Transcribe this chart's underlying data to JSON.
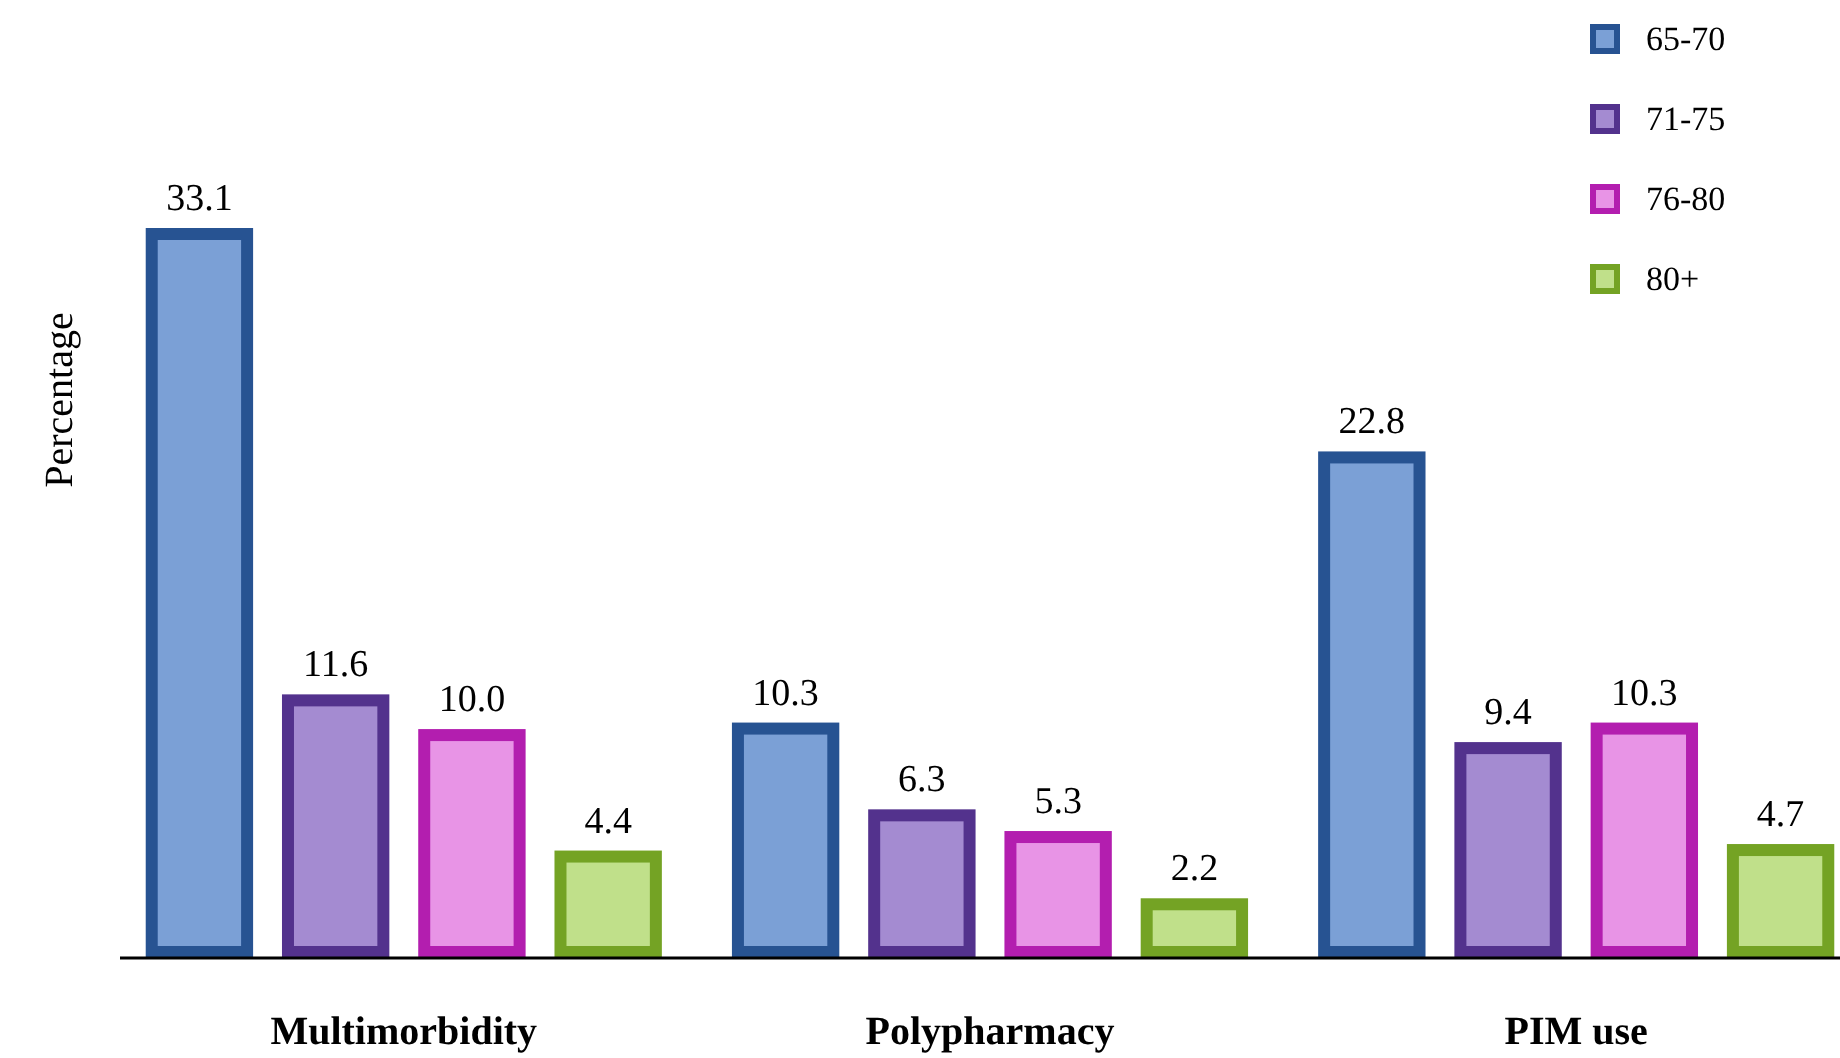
{
  "chart_data": {
    "type": "bar",
    "ylabel": "Percentage",
    "categories": [
      "Multimorbidity",
      "Polypharmacy",
      "PIM use"
    ],
    "series": [
      {
        "name": "65-70",
        "color": "#7ba0d6",
        "values": [
          33.1,
          10.3,
          22.8
        ],
        "value_labels": [
          "33.1",
          "10.3",
          "22.8"
        ]
      },
      {
        "name": "71-75",
        "color": "#a48bd1",
        "values": [
          11.6,
          6.3,
          9.4
        ],
        "value_labels": [
          "11.6",
          "6.3",
          "9.4"
        ]
      },
      {
        "name": "76-80",
        "color": "#e894e6",
        "values": [
          10.0,
          5.3,
          10.3
        ],
        "value_labels": [
          "10.0",
          "5.3",
          "10.3"
        ]
      },
      {
        "name": "80+",
        "color": "#c0e08a",
        "values": [
          4.4,
          2.2,
          4.7
        ],
        "value_labels": [
          "4.4",
          "2.2",
          "4.7"
        ]
      }
    ],
    "legend": "top right"
  }
}
